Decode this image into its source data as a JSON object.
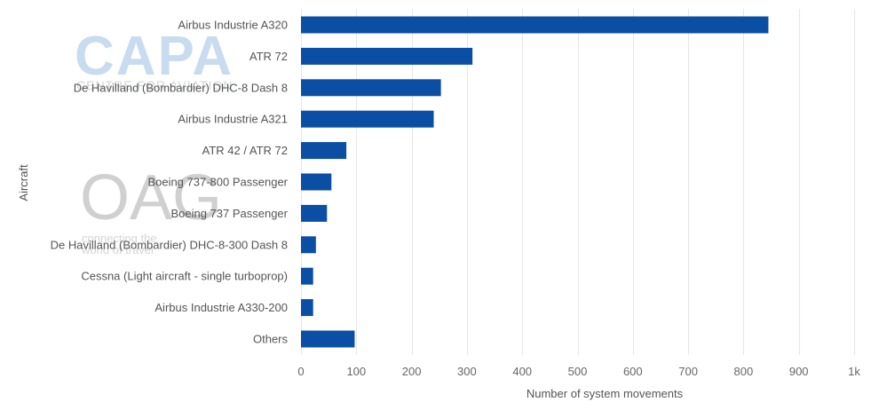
{
  "watermarks": {
    "capa_logo": "CAPA",
    "capa_tagline": "CENTRE FOR AVIATION",
    "oag_logo": "OAG",
    "oag_tagline_1": "connecting the",
    "oag_tagline_2": "world of travel"
  },
  "colors": {
    "bar": "#0a4fa3",
    "grid": "#e6e6e6",
    "text": "#555555"
  },
  "chart_data": {
    "type": "bar",
    "orientation": "horizontal",
    "categories": [
      "Airbus Industrie A320",
      "ATR 72",
      "De Havilland (Bombardier) DHC-8 Dash 8",
      "Airbus Industrie A321",
      "ATR 42 / ATR 72",
      "Boeing 737-800 Passenger",
      "Boeing 737 Passenger",
      "De Havilland (Bombardier) DHC-8-300 Dash 8",
      "Cessna (Light aircraft - single turboprop)",
      "Airbus Industrie A330-200",
      "Others"
    ],
    "values": [
      845,
      310,
      253,
      240,
      82,
      55,
      47,
      27,
      22,
      22,
      97
    ],
    "xlabel": "Number of system movements",
    "ylabel": "Aircraft",
    "xlim": [
      0,
      1000
    ],
    "xticks": [
      0,
      100,
      200,
      300,
      400,
      500,
      600,
      700,
      800,
      900,
      1000
    ],
    "xtick_labels": [
      "0",
      "100",
      "200",
      "300",
      "400",
      "500",
      "600",
      "700",
      "800",
      "900",
      "1k"
    ],
    "grid": true,
    "legend": "none"
  }
}
